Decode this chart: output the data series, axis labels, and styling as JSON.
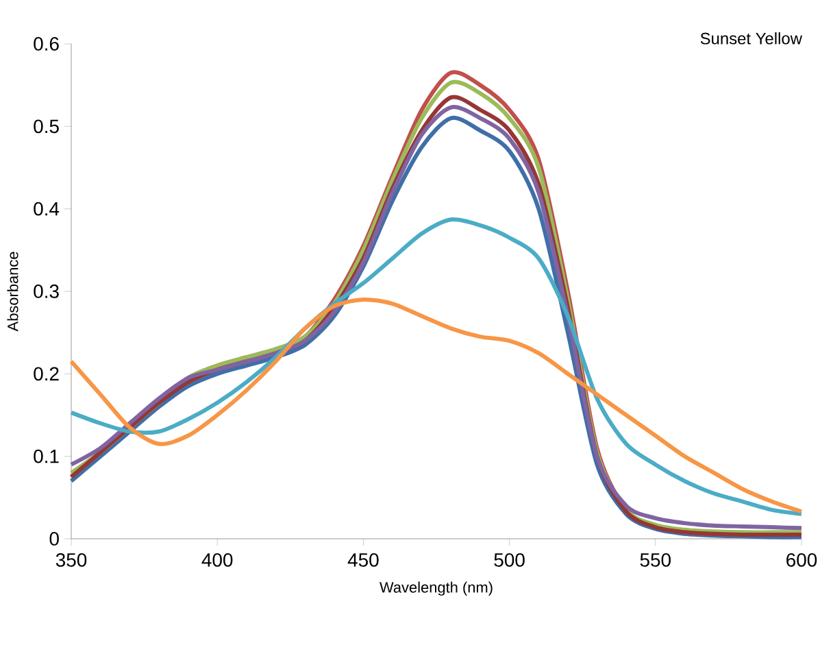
{
  "chart_data": {
    "type": "line",
    "title": "Sunset Yellow",
    "xlabel": "Wavelength (nm)",
    "ylabel": "Absorbance",
    "x": [
      350,
      360,
      370,
      380,
      390,
      400,
      410,
      420,
      430,
      440,
      450,
      460,
      470,
      480,
      490,
      500,
      510,
      520,
      530,
      540,
      550,
      560,
      570,
      580,
      590,
      600
    ],
    "xlim": [
      350,
      600
    ],
    "xticks": [
      350,
      400,
      450,
      500,
      550,
      600
    ],
    "ylim": [
      0,
      0.6
    ],
    "yticks": [
      0,
      0.1,
      0.2,
      0.3,
      0.4,
      0.5,
      0.6
    ],
    "grid": false,
    "marker": "none",
    "line_style": "solid",
    "series": [
      {
        "color": "#3f6fa8",
        "values": [
          0.07,
          0.1,
          0.13,
          0.16,
          0.185,
          0.2,
          0.21,
          0.22,
          0.235,
          0.27,
          0.33,
          0.41,
          0.475,
          0.51,
          0.495,
          0.47,
          0.4,
          0.25,
          0.09,
          0.03,
          0.012,
          0.006,
          0.004,
          0.003,
          0.002,
          0.002
        ]
      },
      {
        "color": "#c0504d",
        "values": [
          0.075,
          0.105,
          0.135,
          0.165,
          0.195,
          0.21,
          0.22,
          0.23,
          0.245,
          0.29,
          0.355,
          0.44,
          0.52,
          0.565,
          0.55,
          0.52,
          0.46,
          0.3,
          0.11,
          0.035,
          0.015,
          0.008,
          0.006,
          0.005,
          0.005,
          0.005
        ]
      },
      {
        "color": "#9bbb59",
        "values": [
          0.08,
          0.105,
          0.135,
          0.165,
          0.195,
          0.21,
          0.22,
          0.23,
          0.245,
          0.285,
          0.35,
          0.435,
          0.51,
          0.553,
          0.54,
          0.51,
          0.45,
          0.29,
          0.105,
          0.035,
          0.017,
          0.011,
          0.009,
          0.008,
          0.008,
          0.008
        ]
      },
      {
        "color": "#953735",
        "values": [
          0.075,
          0.105,
          0.135,
          0.165,
          0.19,
          0.205,
          0.215,
          0.225,
          0.24,
          0.28,
          0.34,
          0.425,
          0.495,
          0.535,
          0.52,
          0.495,
          0.43,
          0.28,
          0.1,
          0.033,
          0.014,
          0.008,
          0.006,
          0.005,
          0.005,
          0.005
        ]
      },
      {
        "color": "#8064a2",
        "values": [
          0.09,
          0.11,
          0.14,
          0.17,
          0.195,
          0.205,
          0.215,
          0.225,
          0.24,
          0.275,
          0.335,
          0.42,
          0.49,
          0.523,
          0.51,
          0.485,
          0.42,
          0.27,
          0.1,
          0.04,
          0.025,
          0.019,
          0.016,
          0.015,
          0.014,
          0.013
        ]
      },
      {
        "color": "#4bacc6",
        "values": [
          0.153,
          0.14,
          0.13,
          0.13,
          0.145,
          0.165,
          0.19,
          0.22,
          0.255,
          0.285,
          0.31,
          0.34,
          0.37,
          0.387,
          0.38,
          0.365,
          0.34,
          0.27,
          0.17,
          0.115,
          0.09,
          0.07,
          0.055,
          0.045,
          0.035,
          0.03
        ]
      },
      {
        "color": "#f79646",
        "values": [
          0.215,
          0.175,
          0.135,
          0.115,
          0.125,
          0.15,
          0.18,
          0.215,
          0.255,
          0.282,
          0.29,
          0.285,
          0.27,
          0.255,
          0.245,
          0.24,
          0.225,
          0.2,
          0.175,
          0.15,
          0.125,
          0.1,
          0.08,
          0.06,
          0.045,
          0.033
        ]
      }
    ]
  }
}
